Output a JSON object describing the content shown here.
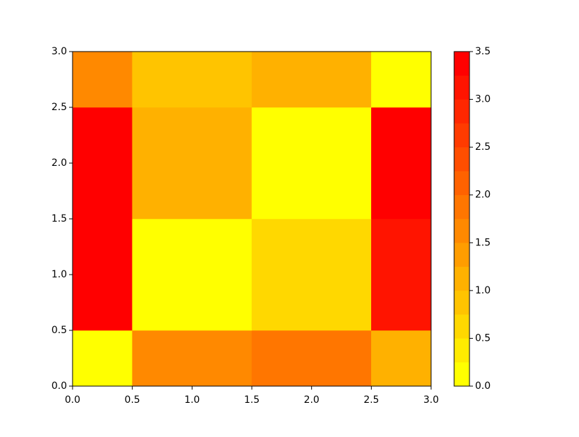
{
  "chart_data": {
    "type": "heatmap",
    "x_edges": [
      0,
      0.5,
      1.5,
      2.5,
      3.0
    ],
    "y_edges": [
      0,
      0.5,
      1.5,
      2.5,
      3.0
    ],
    "values": [
      [
        0,
        1.6,
        1.8,
        1.0
      ],
      [
        3.4,
        0,
        0.6,
        3.0
      ],
      [
        3.4,
        1.1,
        0,
        3.4
      ],
      [
        1.5,
        0.9,
        1.1,
        0
      ]
    ],
    "colormap": "autumn_r",
    "levels": [
      0,
      0.25,
      0.5,
      0.75,
      1.0,
      1.25,
      1.5,
      1.75,
      2.0,
      2.25,
      2.5,
      2.75,
      3.0,
      3.25,
      3.5
    ],
    "xlim": [
      0,
      3.0
    ],
    "ylim": [
      0,
      3.0
    ],
    "xticks": [
      {
        "value": 0,
        "label": "0.0"
      },
      {
        "value": 0.5,
        "label": "0.5"
      },
      {
        "value": 1.0,
        "label": "1.0"
      },
      {
        "value": 1.5,
        "label": "1.5"
      },
      {
        "value": 2.0,
        "label": "2.0"
      },
      {
        "value": 2.5,
        "label": "2.5"
      },
      {
        "value": 3.0,
        "label": "3.0"
      }
    ],
    "yticks": [
      {
        "value": 0,
        "label": "0.0"
      },
      {
        "value": 0.5,
        "label": "0.5"
      },
      {
        "value": 1.0,
        "label": "1.0"
      },
      {
        "value": 1.5,
        "label": "1.5"
      },
      {
        "value": 2.0,
        "label": "2.0"
      },
      {
        "value": 2.5,
        "label": "2.5"
      },
      {
        "value": 3.0,
        "label": "3.0"
      }
    ],
    "clim": [
      0,
      3.5
    ],
    "cticks": [
      {
        "value": 0,
        "label": "0.0"
      },
      {
        "value": 0.5,
        "label": "0.5"
      },
      {
        "value": 1.0,
        "label": "1.0"
      },
      {
        "value": 1.5,
        "label": "1.5"
      },
      {
        "value": 2.0,
        "label": "2.0"
      },
      {
        "value": 2.5,
        "label": "2.5"
      },
      {
        "value": 3.0,
        "label": "3.0"
      },
      {
        "value": 3.5,
        "label": "3.5"
      }
    ]
  }
}
